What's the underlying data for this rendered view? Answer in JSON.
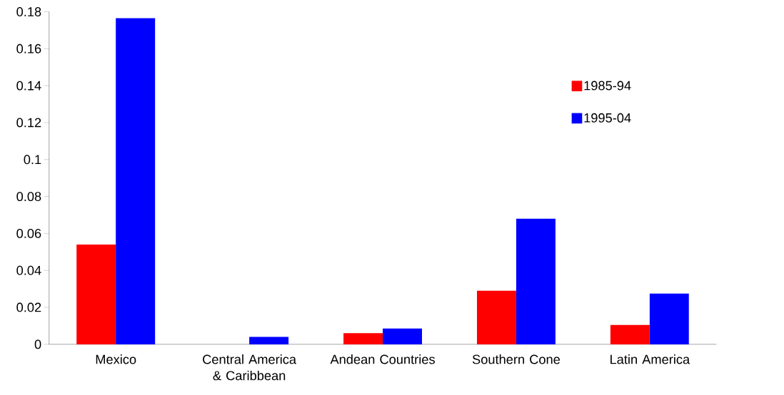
{
  "chart_data": {
    "type": "bar",
    "categories": [
      "Mexico",
      "Central America & Caribbean",
      "Andean Countries",
      "Southern Cone",
      "Latin America"
    ],
    "series": [
      {
        "name": "1985-94",
        "color": "#ff0000",
        "values": [
          0.054,
          null,
          0.006,
          0.029,
          0.0105
        ]
      },
      {
        "name": "1995-04",
        "color": "#0000ff",
        "values": [
          0.1765,
          0.004,
          0.0085,
          0.068,
          0.0275
        ]
      }
    ],
    "ylim": [
      0,
      0.18
    ],
    "yticks": [
      0,
      0.02,
      0.04,
      0.06,
      0.08,
      0.1,
      0.12,
      0.14,
      0.16,
      0.18
    ],
    "grid": false,
    "legend": "top right"
  }
}
